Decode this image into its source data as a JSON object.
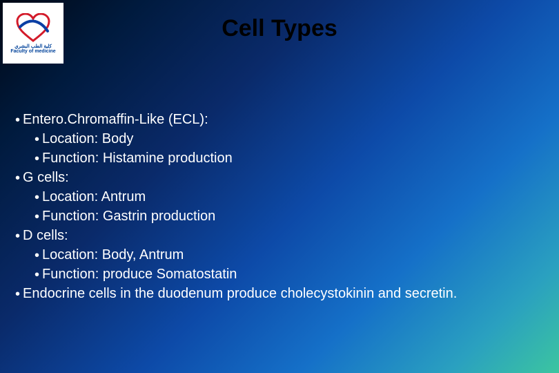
{
  "title": "Cell Types",
  "logo": {
    "heart_color_red": "#d31b2a",
    "heart_color_blue": "#0b3fa4",
    "background": "#ffffff",
    "text_ar": "كلية الطب البشري",
    "text_en": "Faculty of medicine"
  },
  "background": {
    "gradient_stops": [
      "#000814",
      "#001a3d",
      "#0a2a6a",
      "#0d4aa8",
      "#1570c8",
      "#2aa0c0",
      "#3cc5a0"
    ],
    "angle_deg": 135
  },
  "text_color": "#ffffff",
  "title_color": "#000000",
  "font_size_title": 34,
  "font_size_body": 20,
  "bullets": [
    {
      "level": 0,
      "text": "Entero.Chromaffin-Like (ECL):"
    },
    {
      "level": 1,
      "text": "Location: Body"
    },
    {
      "level": 1,
      "text": "Function: Histamine production"
    },
    {
      "level": 0,
      "text": "G cells:"
    },
    {
      "level": 1,
      "text": "Location: Antrum"
    },
    {
      "level": 1,
      "text": "Function: Gastrin production"
    },
    {
      "level": 0,
      "text": "D cells:"
    },
    {
      "level": 1,
      "text": "Location: Body, Antrum"
    },
    {
      "level": 1,
      "text": "Function: produce Somatostatin"
    },
    {
      "level": 0,
      "text": "Endocrine cells in the duodenum produce cholecystokinin and secretin."
    }
  ]
}
